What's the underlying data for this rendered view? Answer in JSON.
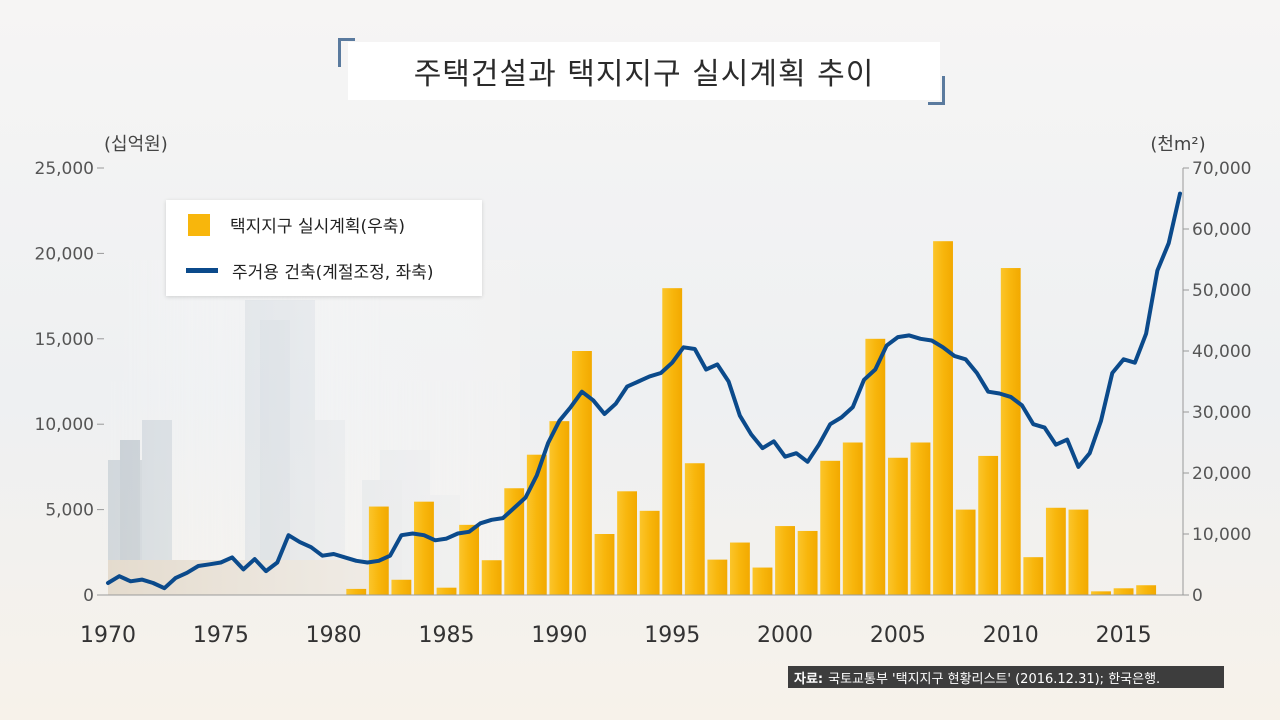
{
  "title": "주택건설과 택지지구 실시계획 추이",
  "source": {
    "label": "자료:",
    "text": "국토교통부 '택지지구 현황리스트' (2016.12.31); 한국은행."
  },
  "colors": {
    "bar": "#f8b60c",
    "line": "#0b4a8b"
  },
  "chart_data": {
    "type": "bar+line",
    "left_axis": {
      "unit_label": "(십억원)",
      "range": [
        0,
        25000
      ],
      "ticks": [
        "0",
        "5,000",
        "10,000",
        "15,000",
        "20,000",
        "25,000"
      ]
    },
    "right_axis": {
      "unit_label": "(천m²)",
      "range": [
        0,
        70000
      ],
      "ticks": [
        "0",
        "10,000",
        "20,000",
        "30,000",
        "40,000",
        "50,000",
        "60,000",
        "70,000"
      ]
    },
    "x_axis": {
      "range": [
        1970,
        2017.5
      ],
      "ticks": [
        "1970",
        "1975",
        "1980",
        "1985",
        "1990",
        "1995",
        "2000",
        "2005",
        "2010",
        "2015"
      ]
    },
    "legend": [
      {
        "label": "택지지구 실시계획(우축)",
        "kind": "bar"
      },
      {
        "label": "주거용 건축(계절조정, 좌축)",
        "kind": "line"
      }
    ],
    "bars": {
      "name": "택지지구 실시계획(우축)",
      "axis": "right",
      "x": [
        1981,
        1982,
        1983,
        1984,
        1985,
        1986,
        1987,
        1988,
        1989,
        1990,
        1991,
        1992,
        1993,
        1994,
        1995,
        1996,
        1997,
        1998,
        1999,
        2000,
        2001,
        2002,
        2003,
        2004,
        2005,
        2006,
        2007,
        2008,
        2009,
        2010,
        2011,
        2012,
        2013,
        2014,
        2015,
        2016
      ],
      "values": [
        1000,
        14500,
        2500,
        15300,
        1200,
        11500,
        5700,
        17500,
        23000,
        28500,
        40000,
        10000,
        17000,
        13800,
        50300,
        21600,
        5800,
        8600,
        4500,
        11300,
        10500,
        22000,
        25000,
        42000,
        22500,
        25000,
        58000,
        14000,
        22800,
        53600,
        6200,
        14300,
        14000,
        600,
        1100,
        1600
      ]
    },
    "line": {
      "name": "주거용 건축(계절조정, 좌축)",
      "axis": "left",
      "x": [
        1970,
        1970.5,
        1971,
        1971.5,
        1972,
        1972.5,
        1973,
        1973.5,
        1974,
        1974.5,
        1975,
        1975.5,
        1976,
        1976.5,
        1977,
        1977.5,
        1978,
        1978.5,
        1979,
        1979.5,
        1980,
        1980.5,
        1981,
        1981.5,
        1982,
        1982.5,
        1983,
        1983.5,
        1984,
        1984.5,
        1985,
        1985.5,
        1986,
        1986.5,
        1987,
        1987.5,
        1988,
        1988.5,
        1989,
        1989.5,
        1990,
        1990.5,
        1991,
        1991.5,
        1992,
        1992.5,
        1993,
        1993.5,
        1994,
        1994.5,
        1995,
        1995.5,
        1996,
        1996.5,
        1997,
        1997.5,
        1998,
        1998.5,
        1999,
        1999.5,
        2000,
        2000.5,
        2001,
        2001.5,
        2002,
        2002.5,
        2003,
        2003.5,
        2004,
        2004.5,
        2005,
        2005.5,
        2006,
        2006.5,
        2007,
        2007.5,
        2008,
        2008.5,
        2009,
        2009.5,
        2010,
        2010.5,
        2011,
        2011.5,
        2012,
        2012.5,
        2013,
        2013.5,
        2014,
        2014.5,
        2015,
        2015.5,
        2016,
        2016.5,
        2017,
        2017.5
      ],
      "values": [
        700,
        1100,
        800,
        900,
        700,
        400,
        1000,
        1300,
        1700,
        1800,
        1900,
        2200,
        1500,
        2100,
        1400,
        1900,
        3500,
        3100,
        2800,
        2300,
        2400,
        2200,
        2000,
        1900,
        2000,
        2300,
        3500,
        3600,
        3500,
        3200,
        3300,
        3600,
        3700,
        4200,
        4400,
        4500,
        5100,
        5700,
        7000,
        8900,
        10200,
        11000,
        11900,
        11400,
        10600,
        11200,
        12200,
        12500,
        12800,
        13000,
        13600,
        14500,
        14400,
        13200,
        13500,
        12500,
        10500,
        9400,
        8600,
        9000,
        8100,
        8300,
        7800,
        8800,
        10000,
        10400,
        11000,
        12600,
        13200,
        14600,
        15100,
        15200,
        15000,
        14900,
        14500,
        14000,
        13800,
        13000,
        11900,
        11800,
        11600,
        11100,
        10000,
        9800,
        8800,
        9100,
        7500,
        8300,
        10200,
        13000,
        13800,
        13600,
        15300,
        19000,
        20600,
        23500
      ]
    }
  }
}
